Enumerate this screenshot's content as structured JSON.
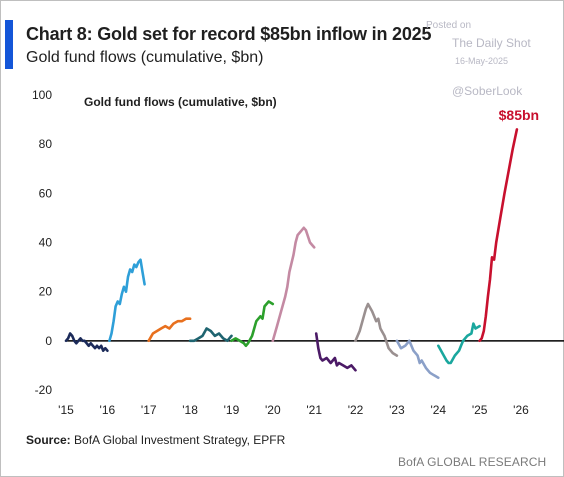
{
  "header": {
    "title": "Chart 8: Gold set for record $85bn inflow in 2025",
    "subtitle": "Gold fund flows (cumulative, $bn)"
  },
  "watermark": {
    "posted": "Posted on",
    "name": "The Daily Shot",
    "date": "16-May-2025",
    "handle": "@SoberLook"
  },
  "footer": {
    "source_label": "Source:",
    "source_text": "BofA Global Investment Strategy, EPFR",
    "brand": "BofA GLOBAL RESEARCH"
  },
  "colors": {
    "accent": "#1456d8",
    "annotation": "#c8102e"
  },
  "chart_data": {
    "type": "line",
    "title": "Gold fund flows (cumulative, $bn)",
    "xlabel": "",
    "ylabel": "",
    "xlim": [
      2015,
      2026.3
    ],
    "ylim": [
      -20,
      100
    ],
    "y_ticks": [
      -20,
      0,
      20,
      40,
      60,
      80,
      100
    ],
    "x_ticks": [
      {
        "value": 2015,
        "label": "'15"
      },
      {
        "value": 2016,
        "label": "'16"
      },
      {
        "value": 2017,
        "label": "'17"
      },
      {
        "value": 2018,
        "label": "'18"
      },
      {
        "value": 2019,
        "label": "'19"
      },
      {
        "value": 2020,
        "label": "'20"
      },
      {
        "value": 2021,
        "label": "'21"
      },
      {
        "value": 2022,
        "label": "'22"
      },
      {
        "value": 2023,
        "label": "'23"
      },
      {
        "value": 2024,
        "label": "'24"
      },
      {
        "value": 2025,
        "label": "'25"
      },
      {
        "value": 2026,
        "label": "'26"
      }
    ],
    "grid": false,
    "zero_line": true,
    "annotation": {
      "text": "$85bn",
      "x": 2025.9,
      "y": 85
    },
    "series": [
      {
        "color": "#1c2b5a",
        "x": [
          2015.0,
          2015.05,
          2015.1,
          2015.15,
          2015.2,
          2015.25,
          2015.3,
          2015.35,
          2015.4,
          2015.45,
          2015.5,
          2015.55,
          2015.6,
          2015.65,
          2015.7,
          2015.75,
          2015.8,
          2015.85,
          2015.9,
          2015.95,
          2016.0
        ],
        "y": [
          0,
          1,
          3,
          2,
          0,
          -1,
          0,
          1,
          0,
          0,
          -1,
          -2,
          -1,
          -2,
          -3,
          -2,
          -3,
          -2,
          -4,
          -3,
          -4
        ]
      },
      {
        "color": "#2e9fd8",
        "x": [
          2016.05,
          2016.1,
          2016.15,
          2016.2,
          2016.25,
          2016.3,
          2016.35,
          2016.4,
          2016.45,
          2016.5,
          2016.55,
          2016.6,
          2016.65,
          2016.7,
          2016.75,
          2016.8,
          2016.85,
          2016.9
        ],
        "y": [
          0,
          3,
          8,
          14,
          16,
          15,
          19,
          22,
          20,
          26,
          29,
          28,
          31,
          30,
          32,
          33,
          28,
          23
        ]
      },
      {
        "color": "#e8701e",
        "x": [
          2017.0,
          2017.1,
          2017.2,
          2017.3,
          2017.4,
          2017.5,
          2017.6,
          2017.7,
          2017.8,
          2017.9,
          2018.0
        ],
        "y": [
          0,
          3,
          4,
          5,
          6,
          5,
          7,
          8,
          8,
          9,
          9
        ]
      },
      {
        "color": "#1f6470",
        "x": [
          2018.0,
          2018.1,
          2018.2,
          2018.3,
          2018.4,
          2018.5,
          2018.6,
          2018.7,
          2018.8,
          2018.9,
          2019.0
        ],
        "y": [
          0,
          0,
          1,
          2,
          5,
          4,
          2,
          3,
          1,
          0,
          2
        ]
      },
      {
        "color": "#2ca02c",
        "x": [
          2019.0,
          2019.1,
          2019.2,
          2019.3,
          2019.35,
          2019.4,
          2019.5,
          2019.55,
          2019.6,
          2019.7,
          2019.75,
          2019.8,
          2019.9,
          2020.0
        ],
        "y": [
          0,
          1,
          0,
          -1,
          -2,
          -1,
          2,
          5,
          8,
          10,
          9,
          14,
          16,
          15
        ]
      },
      {
        "color": "#c48aa3",
        "x": [
          2020.0,
          2020.1,
          2020.2,
          2020.3,
          2020.35,
          2020.4,
          2020.5,
          2020.55,
          2020.6,
          2020.7,
          2020.75,
          2020.8,
          2020.9,
          2021.0
        ],
        "y": [
          0,
          6,
          12,
          18,
          22,
          28,
          35,
          40,
          43,
          45,
          46,
          45,
          40,
          38
        ]
      },
      {
        "color": "#4b1a66",
        "x": [
          2021.05,
          2021.1,
          2021.15,
          2021.2,
          2021.3,
          2021.4,
          2021.5,
          2021.55,
          2021.6,
          2021.7,
          2021.8,
          2021.9,
          2022.0
        ],
        "y": [
          3,
          -3,
          -7,
          -8,
          -7,
          -9,
          -7,
          -10,
          -9,
          -10,
          -11,
          -10,
          -12
        ]
      },
      {
        "color": "#9a9090",
        "x": [
          2022.0,
          2022.1,
          2022.2,
          2022.25,
          2022.3,
          2022.4,
          2022.5,
          2022.55,
          2022.6,
          2022.7,
          2022.8,
          2022.9,
          2023.0
        ],
        "y": [
          0,
          4,
          10,
          13,
          15,
          12,
          8,
          9,
          5,
          2,
          -3,
          -5,
          -6
        ]
      },
      {
        "color": "#8ba0c8",
        "x": [
          2023.0,
          2023.1,
          2023.2,
          2023.25,
          2023.3,
          2023.4,
          2023.5,
          2023.55,
          2023.6,
          2023.7,
          2023.8,
          2023.9,
          2024.0
        ],
        "y": [
          0,
          -3,
          -2,
          -1,
          0,
          -4,
          -6,
          -9,
          -8,
          -11,
          -13,
          -14,
          -15
        ]
      },
      {
        "color": "#1aa79e",
        "x": [
          2024.0,
          2024.1,
          2024.2,
          2024.25,
          2024.3,
          2024.4,
          2024.5,
          2024.55,
          2024.6,
          2024.7,
          2024.8,
          2024.85,
          2024.9,
          2025.0
        ],
        "y": [
          -2,
          -5,
          -8,
          -9,
          -9,
          -6,
          -4,
          -2,
          0,
          2,
          3,
          7,
          5,
          6
        ]
      },
      {
        "color": "#c8102e",
        "x": [
          2025.0,
          2025.05,
          2025.1,
          2025.15,
          2025.2,
          2025.25,
          2025.3,
          2025.35,
          2025.4,
          2025.5,
          2025.6,
          2025.7,
          2025.8,
          2025.9
        ],
        "y": [
          0,
          1,
          4,
          10,
          18,
          25,
          34,
          33,
          40,
          50,
          60,
          69,
          78,
          86
        ]
      }
    ]
  }
}
